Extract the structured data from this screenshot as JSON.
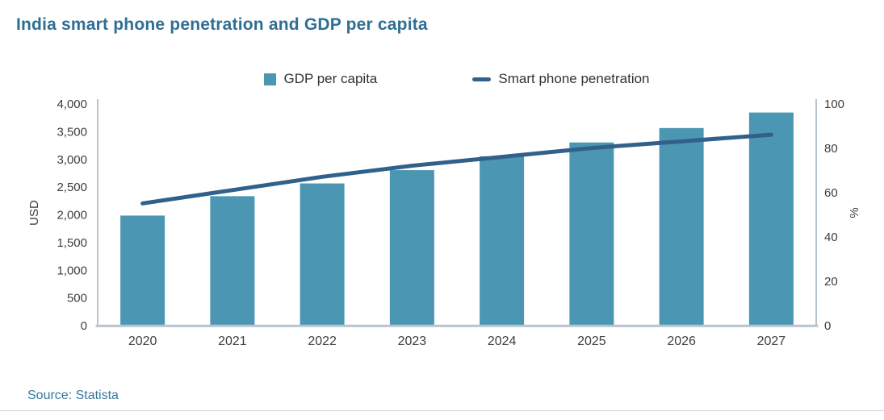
{
  "title": "India smart phone penetration and GDP per capita",
  "source": "Source: Statista",
  "legend": {
    "gdp_label": "GDP per capita",
    "penetration_label": "Smart phone penetration"
  },
  "colors": {
    "bar": "#4a96b3",
    "line": "#31608a",
    "title": "#2e6f94",
    "axis": "#b7c4cd",
    "tick_text": "#3d3d3d",
    "source_text": "#35789d"
  },
  "chart_data": {
    "type": "bar",
    "title": "India smart phone penetration and GDP per capita",
    "categories": [
      "2020",
      "2021",
      "2022",
      "2023",
      "2024",
      "2025",
      "2026",
      "2027"
    ],
    "series": [
      {
        "name": "GDP per capita",
        "type": "bar",
        "axis": "left",
        "color": "#4a96b3",
        "values": [
          1980,
          2330,
          2560,
          2800,
          3050,
          3300,
          3560,
          3840
        ]
      },
      {
        "name": "Smart phone penetration",
        "type": "line",
        "axis": "right",
        "color": "#31608a",
        "values": [
          55,
          61,
          67,
          72,
          76,
          80,
          83,
          86
        ]
      }
    ],
    "left_axis": {
      "label": "USD",
      "min": 0,
      "max": 4000,
      "ticks": [
        {
          "value": 0,
          "label": "0"
        },
        {
          "value": 500,
          "label": "500"
        },
        {
          "value": 1000,
          "label": "1,000"
        },
        {
          "value": 1500,
          "label": "1,500"
        },
        {
          "value": 2000,
          "label": "2,000"
        },
        {
          "value": 2500,
          "label": "2,500"
        },
        {
          "value": 3000,
          "label": "3,000"
        },
        {
          "value": 3500,
          "label": "3,500"
        },
        {
          "value": 4000,
          "label": "4,000"
        }
      ]
    },
    "right_axis": {
      "label": "%",
      "min": 0,
      "max": 100,
      "ticks": [
        {
          "value": 0,
          "label": "0"
        },
        {
          "value": 20,
          "label": "20"
        },
        {
          "value": 40,
          "label": "40"
        },
        {
          "value": 60,
          "label": "60"
        },
        {
          "value": 80,
          "label": "80"
        },
        {
          "value": 100,
          "label": "100"
        }
      ]
    },
    "grid": false,
    "legend_position": "top"
  }
}
